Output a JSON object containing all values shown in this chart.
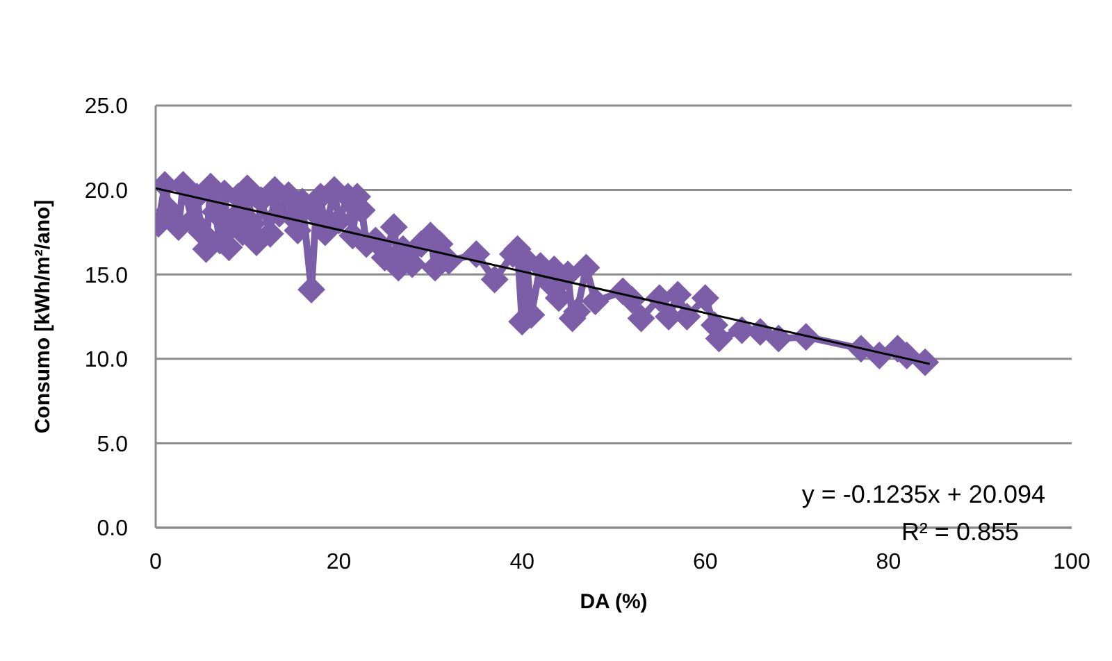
{
  "chart_data": {
    "type": "line",
    "xlabel": "DA (%)",
    "ylabel": "Consumo [kWh/m²/ano]",
    "xlim": [
      0,
      100
    ],
    "xticks": [
      0,
      20,
      40,
      60,
      80,
      100
    ],
    "ylim": [
      0,
      25
    ],
    "yticks": [
      {
        "value": 0,
        "label": "0.0"
      },
      {
        "value": 5,
        "label": "5.0"
      },
      {
        "value": 10,
        "label": "10.0"
      },
      {
        "value": 15,
        "label": "15.0"
      },
      {
        "value": 20,
        "label": "20.0"
      },
      {
        "value": 25,
        "label": "25.0"
      }
    ],
    "grid": "y",
    "marker": "diamond",
    "line_style": "solid",
    "series": [
      {
        "color": "#7b5ea7",
        "x": [
          0.3,
          1,
          1.5,
          2.5,
          3,
          4,
          4.5,
          5,
          5.5,
          6,
          6.5,
          7,
          7.5,
          8,
          8.5,
          9,
          9.5,
          10,
          10.5,
          11,
          11.5,
          12.5,
          13,
          13.5,
          14.5,
          15,
          15.5,
          16,
          17,
          17.5,
          18,
          18.5,
          19.5,
          20,
          21,
          21.5,
          22,
          22.5,
          23,
          24,
          25,
          26,
          26.5,
          27,
          28,
          29,
          30,
          30.5,
          31,
          32,
          35,
          37,
          39,
          39.5,
          40,
          40.5,
          41,
          42,
          43,
          43.5,
          44,
          45,
          45.5,
          46,
          47,
          48,
          51,
          52,
          53,
          55,
          56,
          57,
          58,
          60,
          61,
          61.5,
          64,
          66,
          68,
          71,
          77,
          79,
          81,
          82,
          84
        ],
        "values": [
          18.0,
          20.3,
          18.8,
          17.8,
          20.3,
          18.2,
          19.6,
          17.5,
          16.5,
          20.2,
          18.7,
          17.0,
          19.8,
          16.6,
          18.3,
          19.6,
          17.5,
          20.1,
          18.0,
          16.9,
          19.4,
          17.4,
          20.0,
          18.6,
          19.7,
          18.4,
          17.6,
          19.3,
          14.1,
          18.6,
          19.6,
          17.5,
          20.0,
          18.2,
          19.6,
          17.3,
          19.6,
          18.8,
          16.8,
          17.0,
          16.0,
          17.8,
          15.4,
          16.5,
          15.6,
          16.8,
          17.3,
          15.4,
          16.8,
          15.8,
          16.2,
          14.7,
          16.2,
          16.5,
          12.2,
          15.8,
          12.6,
          15.5,
          14.5,
          15.3,
          13.6,
          15.0,
          12.4,
          12.8,
          15.4,
          13.4,
          14.0,
          13.5,
          12.4,
          13.6,
          12.5,
          13.8,
          12.5,
          13.6,
          12.0,
          11.2,
          11.7,
          11.6,
          11.2,
          11.3,
          10.6,
          10.2,
          10.6,
          10.2,
          9.8
        ]
      },
      {
        "color": "#000000",
        "marker": "none",
        "x": [
          0,
          84.5
        ],
        "values": [
          20.1,
          9.7
        ]
      }
    ],
    "annotations": [
      "y = -0.1235x + 20.094",
      "R² = 0.855"
    ]
  }
}
